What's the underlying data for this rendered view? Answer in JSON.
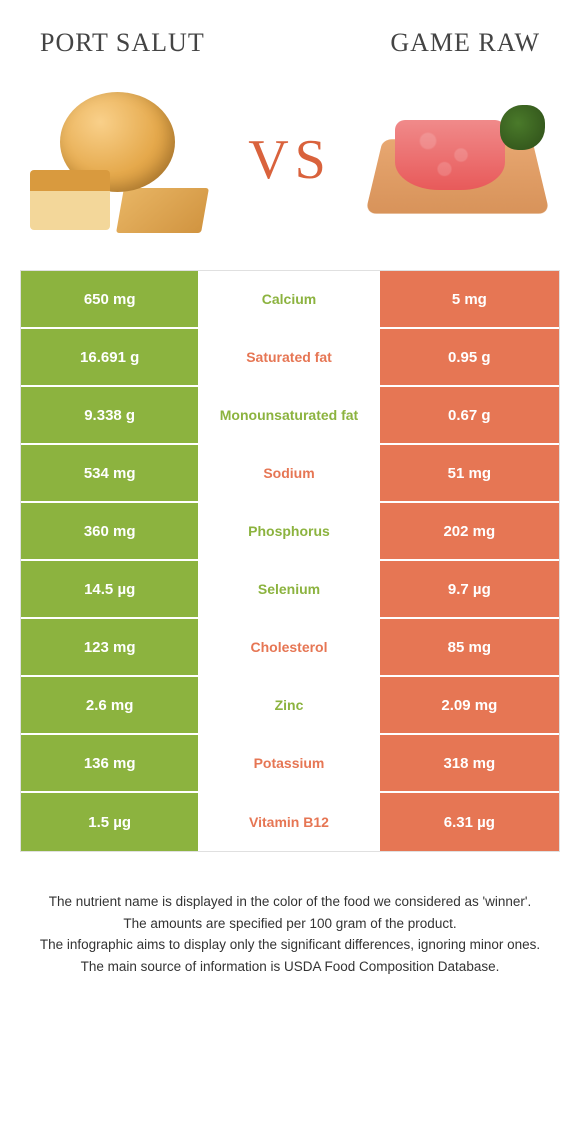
{
  "colors": {
    "left_bg": "#8cb33f",
    "right_bg": "#e67654",
    "mid_bg": "#ffffff",
    "left_text": "#8cb33f",
    "right_text": "#e67654",
    "vs_color": "#d9623c",
    "header_color": "#444444"
  },
  "header": {
    "left_title": "Port Salut",
    "right_title": "Game Raw",
    "vs_label": "VS"
  },
  "rows": [
    {
      "left": "650 mg",
      "label": "Calcium",
      "right": "5 mg",
      "winner": "left"
    },
    {
      "left": "16.691 g",
      "label": "Saturated fat",
      "right": "0.95 g",
      "winner": "right"
    },
    {
      "left": "9.338 g",
      "label": "Monounsaturated fat",
      "right": "0.67 g",
      "winner": "left"
    },
    {
      "left": "534 mg",
      "label": "Sodium",
      "right": "51 mg",
      "winner": "right"
    },
    {
      "left": "360 mg",
      "label": "Phosphorus",
      "right": "202 mg",
      "winner": "left"
    },
    {
      "left": "14.5 µg",
      "label": "Selenium",
      "right": "9.7 µg",
      "winner": "left"
    },
    {
      "left": "123 mg",
      "label": "Cholesterol",
      "right": "85 mg",
      "winner": "right"
    },
    {
      "left": "2.6 mg",
      "label": "Zinc",
      "right": "2.09 mg",
      "winner": "left"
    },
    {
      "left": "136 mg",
      "label": "Potassium",
      "right": "318 mg",
      "winner": "right"
    },
    {
      "left": "1.5 µg",
      "label": "Vitamin B12",
      "right": "6.31 µg",
      "winner": "right"
    }
  ],
  "footer": {
    "line1": "The nutrient name is displayed in the color of the food we considered as 'winner'.",
    "line2": "The amounts are specified per 100 gram of the product.",
    "line3": "The infographic aims to display only the significant differences, ignoring minor ones.",
    "line4": "The main source of information is USDA Food Composition Database."
  }
}
